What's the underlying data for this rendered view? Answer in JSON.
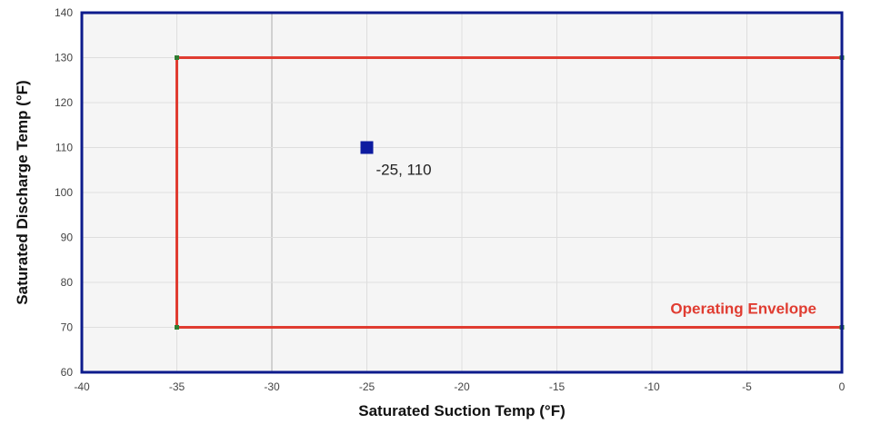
{
  "chart_data": {
    "type": "scatter",
    "title": "",
    "xlabel": "Saturated Suction Temp (°F)",
    "ylabel": "Saturated Discharge Temp (°F)",
    "xlim": [
      -40,
      0
    ],
    "ylim": [
      60,
      140
    ],
    "x_ticks": [
      "-40",
      "-35",
      "-30",
      "-25",
      "-20",
      "-15",
      "-10",
      "-5",
      "0"
    ],
    "y_ticks": [
      "60",
      "70",
      "80",
      "90",
      "100",
      "110",
      "120",
      "130",
      "140"
    ],
    "grid": true,
    "envelope": {
      "name": "Operating Envelope",
      "color": "#e03c31",
      "vertex_color": "#2e7d32",
      "points": [
        {
          "x": -35,
          "y": 70
        },
        {
          "x": -35,
          "y": 130
        },
        {
          "x": 0,
          "y": 130
        },
        {
          "x": 0,
          "y": 70
        }
      ]
    },
    "operating_point": {
      "x": -25,
      "y": 110,
      "label": "-25, 110",
      "color": "#0d1ba0"
    },
    "colors": {
      "plot_background": "#f5f5f5",
      "plot_border": "#0d1b8c",
      "grid": "#dedede",
      "highlight_grid": "#c4c4c4"
    }
  }
}
